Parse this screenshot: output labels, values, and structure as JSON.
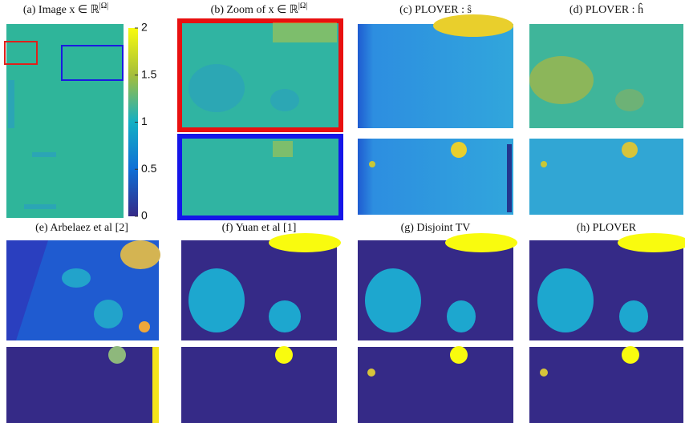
{
  "panels": [
    {
      "caption": "(a) Image x ∈ ℝ",
      "superscript": "|Ω|"
    },
    {
      "caption": "(b) Zoom of x ∈ ℝ",
      "superscript": "|Ω|"
    },
    {
      "caption": "(c) PLOVER : ŝ"
    },
    {
      "caption": "(d) PLOVER : ĥ"
    },
    {
      "caption": "(e) Arbelaez et al [2]"
    },
    {
      "caption": "(f) Yuan et al [1]"
    },
    {
      "caption": "(g) Disjoint TV"
    },
    {
      "caption": "(h) PLOVER"
    }
  ],
  "colorbar": {
    "lim": [
      0,
      2
    ],
    "ticks": [
      0,
      0.5,
      1,
      1.5,
      2
    ]
  }
}
